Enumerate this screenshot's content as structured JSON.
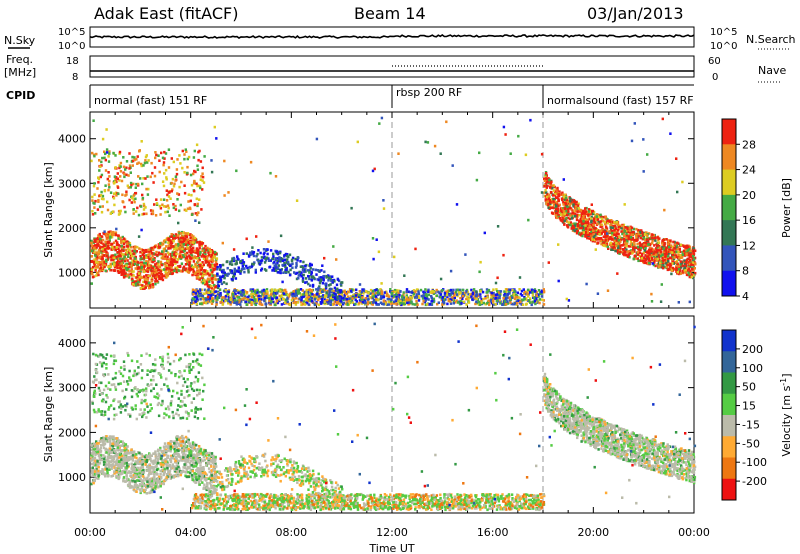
{
  "header": {
    "station": "Adak East (fitACF)",
    "beam": "Beam 14",
    "date": "03/Jan/2013"
  },
  "left_labels": {
    "nsky": "N.Sky",
    "freq": "Freq.",
    "freq_unit": "[MHz]",
    "cpid": "CPID"
  },
  "right_labels": {
    "nsearch": "N.Search",
    "nave": "Nave"
  },
  "top_panels": {
    "noise": {
      "yticks_left": [
        "10^5",
        "10^0"
      ],
      "yticks_right": [
        "10^5",
        "10^0"
      ]
    },
    "freq_nave": {
      "yticks_left": [
        "18",
        "8"
      ],
      "yticks_right": [
        "60",
        "0"
      ]
    }
  },
  "cpid_segments": [
    {
      "label": "normal (fast) 151 RF",
      "start_h": 0,
      "end_h": 12
    },
    {
      "label": "rbsp 200 RF",
      "start_h": 12,
      "end_h": 18
    },
    {
      "label": "normalsound (fast) 157 RF",
      "start_h": 18,
      "end_h": 24
    }
  ],
  "chart_data": [
    {
      "type": "heatmap",
      "name": "power",
      "ylabel": "Slant Range [km]",
      "yticks": [
        1000,
        2000,
        3000,
        4000
      ],
      "ylim": [
        200,
        4600
      ],
      "xlim": [
        0,
        24
      ],
      "colorbar": {
        "label": "Power [dB]",
        "ticks": [
          "4",
          "8",
          "12",
          "16",
          "20",
          "24",
          "28"
        ],
        "colors": [
          "#1111ee",
          "#3355bb",
          "#337755",
          "#44aa44",
          "#ddcc22",
          "#ee8822",
          "#ee2211"
        ]
      }
    },
    {
      "type": "heatmap",
      "name": "velocity",
      "ylabel": "Slant Range [km]",
      "yticks": [
        1000,
        2000,
        3000,
        4000
      ],
      "ylim": [
        200,
        4600
      ],
      "xlim": [
        0,
        24
      ],
      "colorbar": {
        "label_main": "Velocity [m s",
        "label_sup": "-1",
        "label_end": "]",
        "ticks": [
          "200",
          "100",
          "50",
          "15",
          "-15",
          "-50",
          "-100",
          "-200"
        ],
        "colors": [
          "#1133cc",
          "#336699",
          "#339944",
          "#55cc44",
          "#bbbbaa",
          "#ffaa33",
          "#ee7711",
          "#ee1111"
        ]
      }
    }
  ],
  "xaxis": {
    "label": "Time UT",
    "ticks": [
      "00:00",
      "04:00",
      "08:00",
      "12:00",
      "16:00",
      "20:00",
      "00:00"
    ]
  }
}
